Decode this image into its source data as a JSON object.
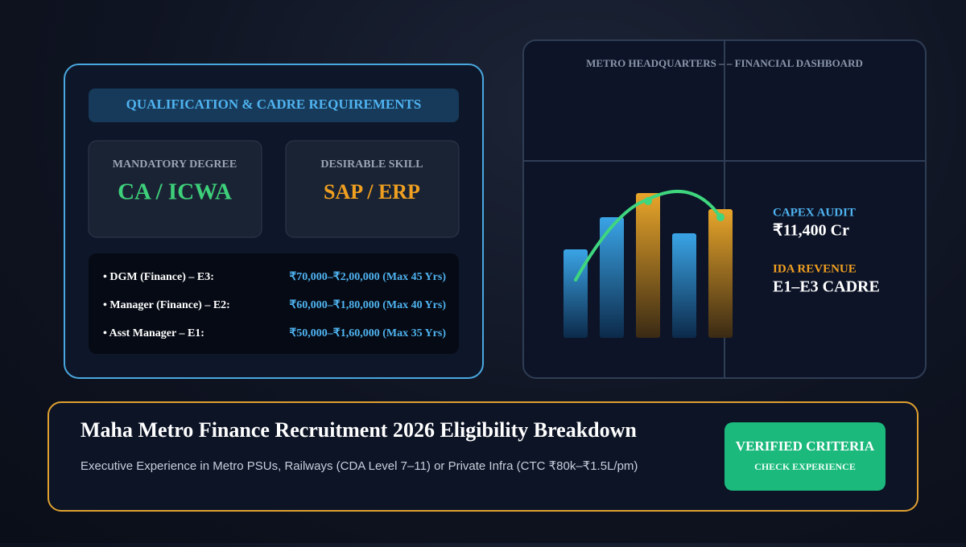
{
  "qualification_card": {
    "heading": "QUALIFICATION & CADRE REQUIREMENTS",
    "boxes": [
      {
        "label": "MANDATORY DEGREE",
        "value": "CA / ICWA"
      },
      {
        "label": "DESIRABLE SKILL",
        "value": "SAP / ERP"
      }
    ],
    "posts": [
      {
        "post": "• DGM (Finance) – E3:",
        "detail": "₹70,000–₹2,00,000 (Max 45 Yrs)"
      },
      {
        "post": "• Manager (Finance) – E2:",
        "detail": "₹60,000–₹1,80,000 (Max 40 Yrs)"
      },
      {
        "post": "• Asst Manager – E1:",
        "detail": "₹50,000–₹1,60,000 (Max 35 Yrs)"
      }
    ]
  },
  "dashboard": {
    "title": "METRO HEADQUARTERS – – FINANCIAL DASHBOARD",
    "stats": [
      {
        "label": "CAPEX AUDIT",
        "value": "₹11,400 Cr"
      },
      {
        "label": "IDA REVENUE",
        "value": "E1–E3 CADRE"
      }
    ]
  },
  "banner": {
    "title": "Maha Metro Finance Recruitment 2026 Eligibility Breakdown",
    "subtitle": "Executive Experience in Metro PSUs, Railways (CDA Level 7–11) or Private Infra (CTC ₹80k–₹1.5L/pm)",
    "button": {
      "title": "VERIFIED CRITERIA",
      "subtitle": "CHECK EXPERIENCE"
    }
  }
}
